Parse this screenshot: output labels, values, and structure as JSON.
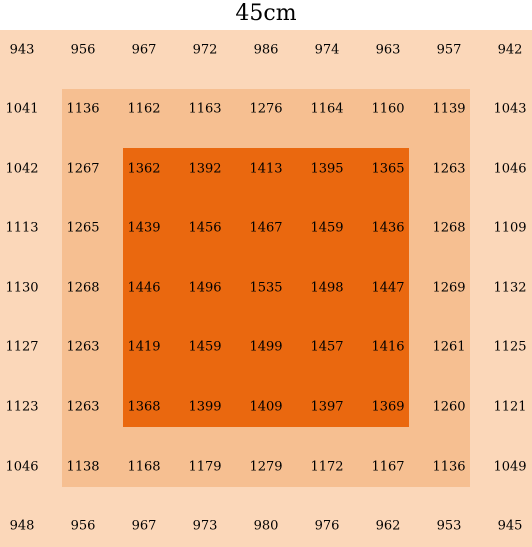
{
  "title": "45cm",
  "colors": {
    "outer": "#fbd7b9",
    "middle": "#f6bf91",
    "inner": "#ea680f"
  },
  "chart_data": {
    "type": "heatmap",
    "title": "45cm",
    "rows": [
      [
        943,
        956,
        967,
        972,
        986,
        974,
        963,
        957,
        942
      ],
      [
        1041,
        1136,
        1162,
        1163,
        1276,
        1164,
        1160,
        1139,
        1043
      ],
      [
        1042,
        1267,
        1362,
        1392,
        1413,
        1395,
        1365,
        1263,
        1046
      ],
      [
        1113,
        1265,
        1439,
        1456,
        1467,
        1459,
        1436,
        1268,
        1109
      ],
      [
        1130,
        1268,
        1446,
        1496,
        1535,
        1498,
        1447,
        1269,
        1132
      ],
      [
        1127,
        1263,
        1419,
        1459,
        1499,
        1457,
        1416,
        1261,
        1125
      ],
      [
        1123,
        1263,
        1368,
        1399,
        1409,
        1397,
        1369,
        1260,
        1121
      ],
      [
        1046,
        1138,
        1168,
        1179,
        1279,
        1172,
        1167,
        1136,
        1049
      ],
      [
        948,
        956,
        967,
        973,
        980,
        976,
        962,
        953,
        945
      ]
    ]
  }
}
